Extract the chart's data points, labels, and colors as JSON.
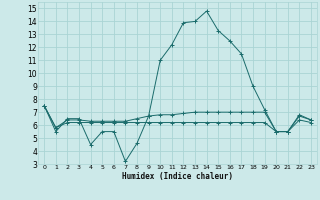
{
  "xlabel": "Humidex (Indice chaleur)",
  "xlim": [
    -0.5,
    23.5
  ],
  "ylim": [
    3,
    15.5
  ],
  "yticks": [
    3,
    4,
    5,
    6,
    7,
    8,
    9,
    10,
    11,
    12,
    13,
    14,
    15
  ],
  "xticks": [
    0,
    1,
    2,
    3,
    4,
    5,
    6,
    7,
    8,
    9,
    10,
    11,
    12,
    13,
    14,
    15,
    16,
    17,
    18,
    19,
    20,
    21,
    22,
    23
  ],
  "bg_color": "#cce9e9",
  "grid_color": "#aad4d4",
  "line_color": "#1a6b6b",
  "line1_x": [
    0,
    1,
    2,
    3,
    4,
    5,
    6,
    7,
    8,
    9,
    10,
    11,
    12,
    13,
    14,
    15,
    16,
    17,
    18,
    19,
    20,
    21,
    22,
    23
  ],
  "line1_y": [
    7.5,
    5.5,
    6.5,
    6.5,
    4.5,
    5.5,
    5.5,
    3.2,
    4.6,
    6.7,
    11.0,
    12.2,
    13.9,
    14.0,
    14.8,
    13.3,
    12.5,
    11.5,
    9.0,
    7.2,
    5.5,
    5.5,
    6.8,
    6.4
  ],
  "line2_x": [
    0,
    1,
    2,
    3,
    4,
    5,
    6,
    7,
    8,
    9,
    10,
    11,
    12,
    13,
    14,
    15,
    16,
    17,
    18,
    19,
    20,
    21,
    22,
    23
  ],
  "line2_y": [
    7.5,
    5.8,
    6.4,
    6.4,
    6.3,
    6.3,
    6.3,
    6.3,
    6.5,
    6.7,
    6.8,
    6.8,
    6.9,
    7.0,
    7.0,
    7.0,
    7.0,
    7.0,
    7.0,
    7.0,
    5.5,
    5.5,
    6.7,
    6.4
  ],
  "line3_x": [
    0,
    1,
    2,
    3,
    4,
    5,
    6,
    7,
    8,
    9,
    10,
    11,
    12,
    13,
    14,
    15,
    16,
    17,
    18,
    19,
    20,
    21,
    22,
    23
  ],
  "line3_y": [
    7.5,
    5.8,
    6.2,
    6.2,
    6.2,
    6.2,
    6.2,
    6.2,
    6.2,
    6.2,
    6.2,
    6.2,
    6.2,
    6.2,
    6.2,
    6.2,
    6.2,
    6.2,
    6.2,
    6.2,
    5.5,
    5.5,
    6.4,
    6.2
  ]
}
